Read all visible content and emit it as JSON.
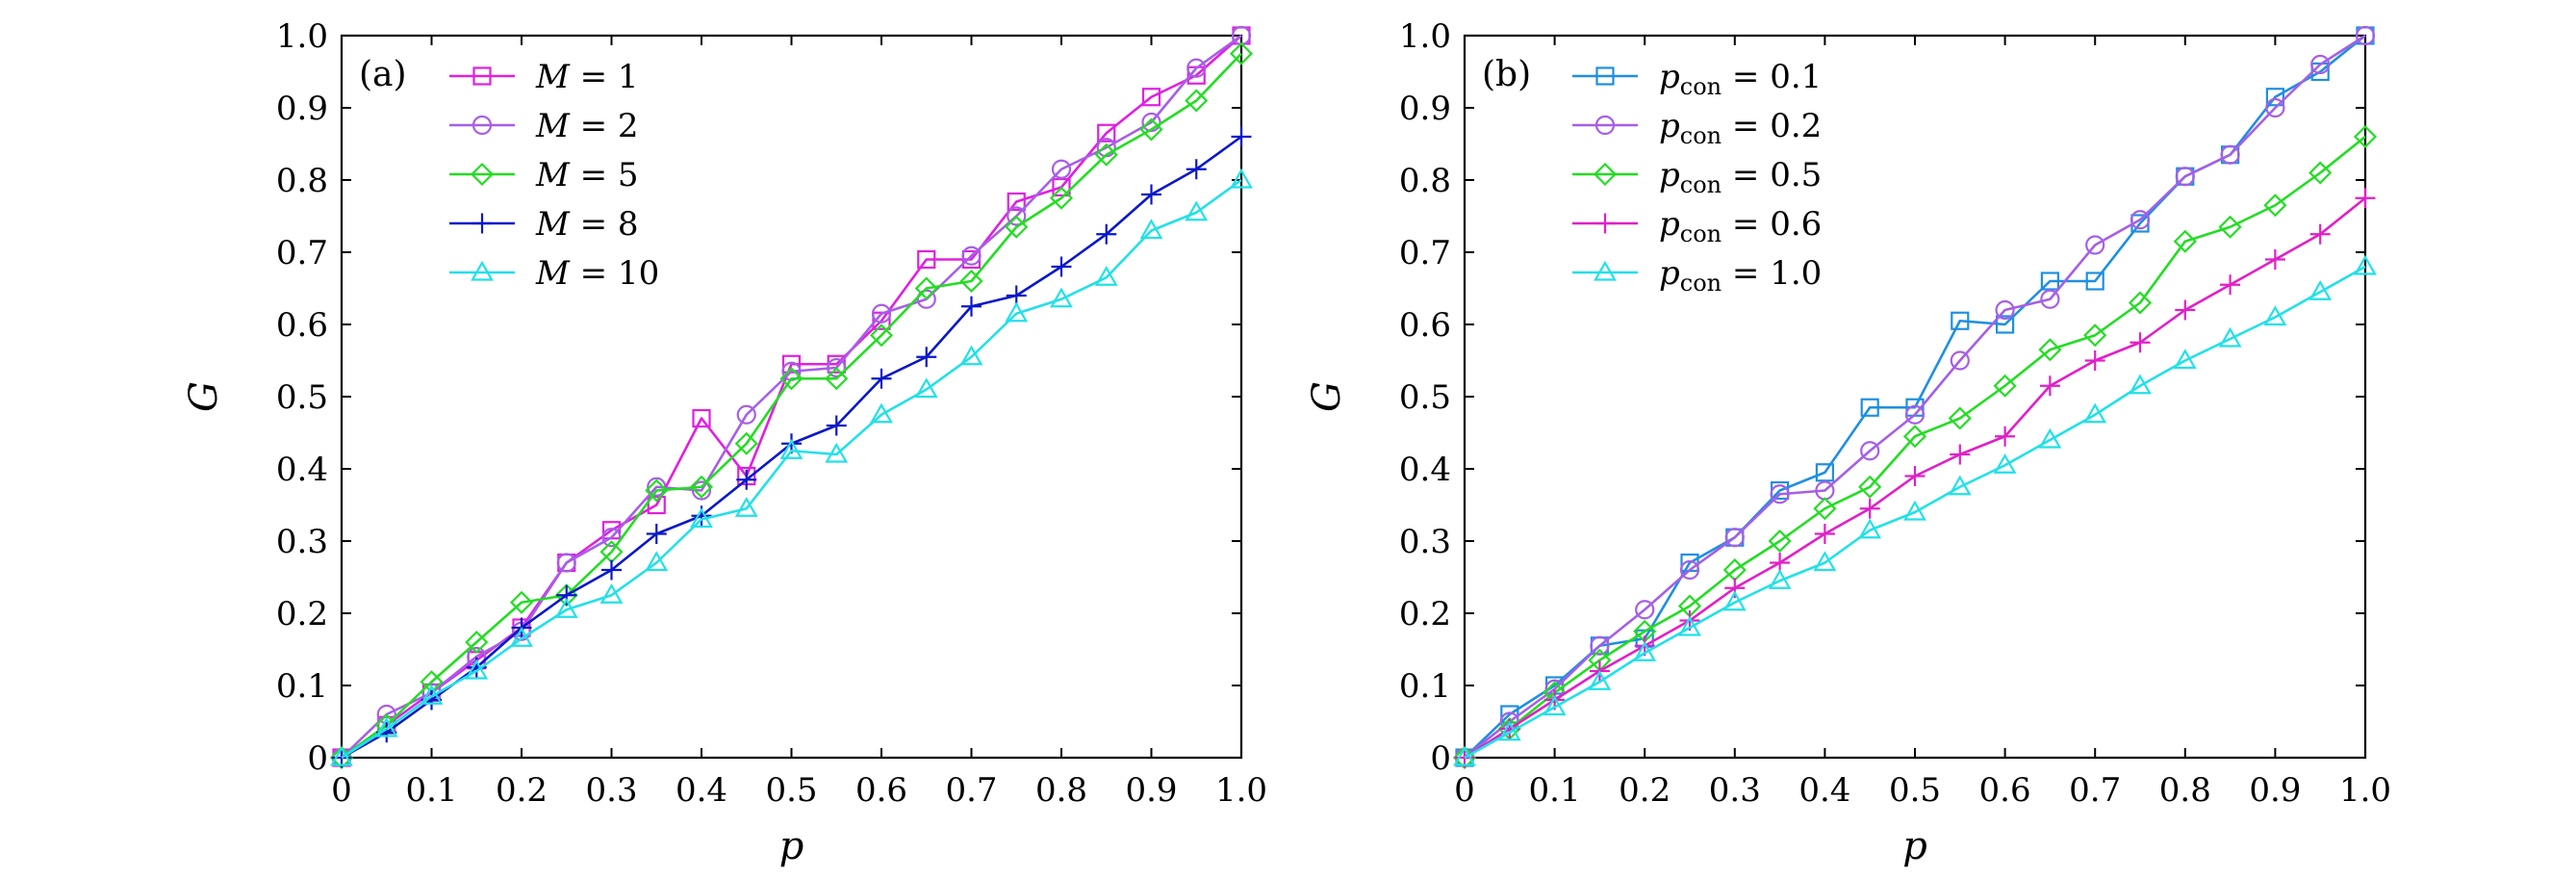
{
  "chart_data": [
    {
      "type": "line",
      "panel_label": "(a)",
      "xlabel": "p",
      "ylabel": "G",
      "xlim": [
        0,
        1
      ],
      "ylim": [
        0,
        1
      ],
      "xticks": [
        "0",
        "0.1",
        "0.2",
        "0.3",
        "0.4",
        "0.5",
        "0.6",
        "0.7",
        "0.8",
        "0.9",
        "1.0"
      ],
      "yticks": [
        "0",
        "0.1",
        "0.2",
        "0.3",
        "0.4",
        "0.5",
        "0.6",
        "0.7",
        "0.8",
        "0.9",
        "1.0"
      ],
      "legend_position": "top-left",
      "grid": false,
      "x": [
        0,
        0.05,
        0.1,
        0.15,
        0.2,
        0.25,
        0.3,
        0.35,
        0.4,
        0.45,
        0.5,
        0.55,
        0.6,
        0.65,
        0.7,
        0.75,
        0.8,
        0.85,
        0.9,
        0.95,
        1.0
      ],
      "series": [
        {
          "name": "M = 1",
          "color": "#e020e0",
          "marker": "square",
          "values": [
            0,
            0.045,
            0.09,
            0.135,
            0.18,
            0.27,
            0.315,
            0.35,
            0.47,
            0.39,
            0.545,
            0.545,
            0.605,
            0.69,
            0.69,
            0.77,
            0.79,
            0.865,
            0.915,
            0.945,
            1.0
          ]
        },
        {
          "name": "M = 2",
          "color": "#a65fe6",
          "marker": "circle",
          "values": [
            0,
            0.06,
            0.09,
            0.14,
            0.175,
            0.27,
            0.305,
            0.375,
            0.37,
            0.475,
            0.535,
            0.54,
            0.615,
            0.635,
            0.695,
            0.75,
            0.815,
            0.845,
            0.88,
            0.955,
            1.0
          ]
        },
        {
          "name": "M = 5",
          "color": "#22dd22",
          "marker": "diamond",
          "values": [
            0,
            0.045,
            0.105,
            0.16,
            0.215,
            0.225,
            0.285,
            0.37,
            0.375,
            0.435,
            0.525,
            0.525,
            0.585,
            0.65,
            0.66,
            0.735,
            0.775,
            0.835,
            0.87,
            0.91,
            0.975
          ]
        },
        {
          "name": "M = 8",
          "color": "#0a18c8",
          "marker": "plus",
          "values": [
            0,
            0.035,
            0.08,
            0.125,
            0.18,
            0.225,
            0.26,
            0.31,
            0.335,
            0.385,
            0.435,
            0.46,
            0.525,
            0.555,
            0.625,
            0.64,
            0.68,
            0.725,
            0.78,
            0.815,
            0.86
          ]
        },
        {
          "name": "M = 10",
          "color": "#22e0e8",
          "marker": "triangle",
          "values": [
            0,
            0.04,
            0.085,
            0.12,
            0.165,
            0.205,
            0.225,
            0.27,
            0.33,
            0.345,
            0.425,
            0.42,
            0.475,
            0.51,
            0.555,
            0.615,
            0.635,
            0.665,
            0.73,
            0.755,
            0.8
          ]
        }
      ]
    },
    {
      "type": "line",
      "panel_label": "(b)",
      "xlabel": "p",
      "ylabel": "G",
      "xlim": [
        0,
        1
      ],
      "ylim": [
        0,
        1
      ],
      "xticks": [
        "0",
        "0.1",
        "0.2",
        "0.3",
        "0.4",
        "0.5",
        "0.6",
        "0.7",
        "0.8",
        "0.9",
        "1.0"
      ],
      "yticks": [
        "0",
        "0.1",
        "0.2",
        "0.3",
        "0.4",
        "0.5",
        "0.6",
        "0.7",
        "0.8",
        "0.9",
        "1.0"
      ],
      "legend_position": "top-left",
      "grid": false,
      "x": [
        0,
        0.05,
        0.1,
        0.15,
        0.2,
        0.25,
        0.3,
        0.35,
        0.4,
        0.45,
        0.5,
        0.55,
        0.6,
        0.65,
        0.7,
        0.75,
        0.8,
        0.85,
        0.9,
        0.95,
        1.0
      ],
      "series": [
        {
          "name": "p_con = 0.1",
          "color": "#1f8fe0",
          "marker": "square",
          "values": [
            0,
            0.06,
            0.1,
            0.155,
            0.165,
            0.27,
            0.305,
            0.37,
            0.395,
            0.485,
            0.485,
            0.605,
            0.6,
            0.66,
            0.66,
            0.74,
            0.805,
            0.835,
            0.915,
            0.95,
            1.0
          ]
        },
        {
          "name": "p_con = 0.2",
          "color": "#a65fe6",
          "marker": "circle",
          "values": [
            0,
            0.05,
            0.095,
            0.155,
            0.205,
            0.26,
            0.305,
            0.365,
            0.37,
            0.425,
            0.475,
            0.55,
            0.62,
            0.635,
            0.71,
            0.745,
            0.805,
            0.835,
            0.9,
            0.96,
            1.0
          ]
        },
        {
          "name": "p_con = 0.5",
          "color": "#22dd22",
          "marker": "diamond",
          "values": [
            0,
            0.04,
            0.09,
            0.135,
            0.175,
            0.21,
            0.26,
            0.3,
            0.345,
            0.375,
            0.445,
            0.47,
            0.515,
            0.565,
            0.585,
            0.63,
            0.715,
            0.735,
            0.765,
            0.81,
            0.86
          ]
        },
        {
          "name": "p_con = 0.6",
          "color": "#e020c8",
          "marker": "plus",
          "values": [
            0,
            0.04,
            0.08,
            0.12,
            0.155,
            0.19,
            0.235,
            0.27,
            0.31,
            0.345,
            0.39,
            0.42,
            0.445,
            0.515,
            0.55,
            0.575,
            0.62,
            0.655,
            0.69,
            0.725,
            0.775
          ]
        },
        {
          "name": "p_con = 1.0",
          "color": "#22e0e8",
          "marker": "triangle",
          "values": [
            0,
            0.035,
            0.07,
            0.105,
            0.145,
            0.18,
            0.215,
            0.245,
            0.27,
            0.315,
            0.34,
            0.375,
            0.405,
            0.44,
            0.475,
            0.515,
            0.55,
            0.58,
            0.61,
            0.645,
            0.68
          ]
        }
      ]
    }
  ]
}
